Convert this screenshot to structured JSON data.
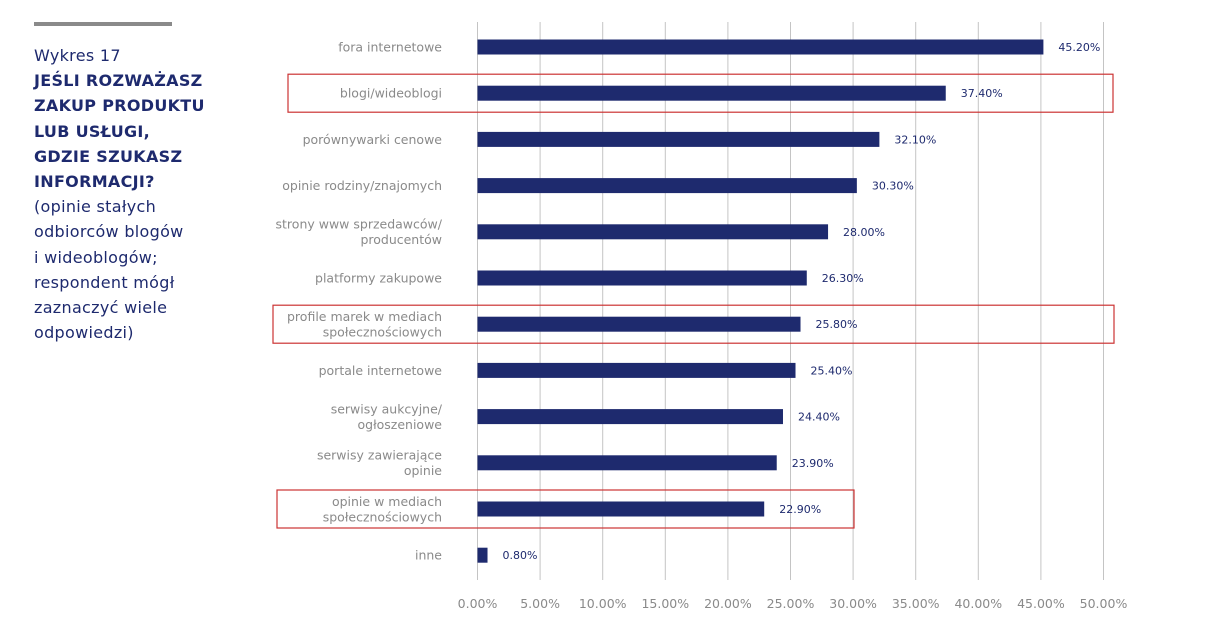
{
  "sidebar": {
    "label": "Wykres 17",
    "title_lines": [
      "JEŚLI ROZWAŻASZ",
      "ZAKUP PRODUKTU",
      "LUB USŁUGI,",
      "GDZIE SZUKASZ",
      "INFORMACJI?"
    ],
    "note_lines": [
      "(opinie stałych",
      "odbiorców blogów",
      "i wideoblogów;",
      "respondent mógł",
      "zaznaczyć wiele",
      "odpowiedzi)"
    ]
  },
  "colors": {
    "bar": "#1e2a6e",
    "grid": "#c4c4c4",
    "category_text": "#8a8a8a",
    "value_text": "#1e2a6e",
    "highlight": "#cc3333"
  },
  "chart_data": {
    "type": "bar",
    "orientation": "horizontal",
    "title": "JEŚLI ROZWAŻASZ ZAKUP PRODUKTU LUB USŁUGI, GDZIE SZUKASZ INFORMACJI?",
    "xlabel": "",
    "ylabel": "",
    "xlim": [
      0,
      50
    ],
    "grid": true,
    "x_ticks": [
      "0.00%",
      "5.00%",
      "10.00%",
      "15.00%",
      "20.00%",
      "25.00%",
      "30.00%",
      "35.00%",
      "40.00%",
      "45.00%",
      "50.00%"
    ],
    "x_tick_values": [
      0,
      5,
      10,
      15,
      20,
      25,
      30,
      35,
      40,
      45,
      50
    ],
    "categories": [
      [
        "fora internetowe"
      ],
      [
        "blogi/wideoblogi"
      ],
      [
        "porównywarki cenowe"
      ],
      [
        "opinie rodziny/znajomych"
      ],
      [
        "strony www sprzedawców/",
        "producentów"
      ],
      [
        "platformy zakupowe"
      ],
      [
        "profile marek w mediach",
        "społecznościowych"
      ],
      [
        "portale internetowe"
      ],
      [
        "serwisy aukcyjne/",
        "ogłoszeniowe"
      ],
      [
        "serwisy zawierające",
        "opinie"
      ],
      [
        "opinie w mediach",
        "społecznościowych"
      ],
      [
        "inne"
      ]
    ],
    "values": [
      45.2,
      37.4,
      32.1,
      30.3,
      28.0,
      26.3,
      25.8,
      25.4,
      24.4,
      23.9,
      22.9,
      0.8
    ],
    "value_labels": [
      "45.20%",
      "37.40%",
      "32.10%",
      "30.30%",
      "28.00%",
      "26.30%",
      "25.80%",
      "25.40%",
      "24.40%",
      "23.90%",
      "22.90%",
      "0.80%"
    ],
    "highlighted": [
      false,
      true,
      false,
      false,
      false,
      false,
      true,
      false,
      false,
      false,
      true,
      false
    ]
  }
}
